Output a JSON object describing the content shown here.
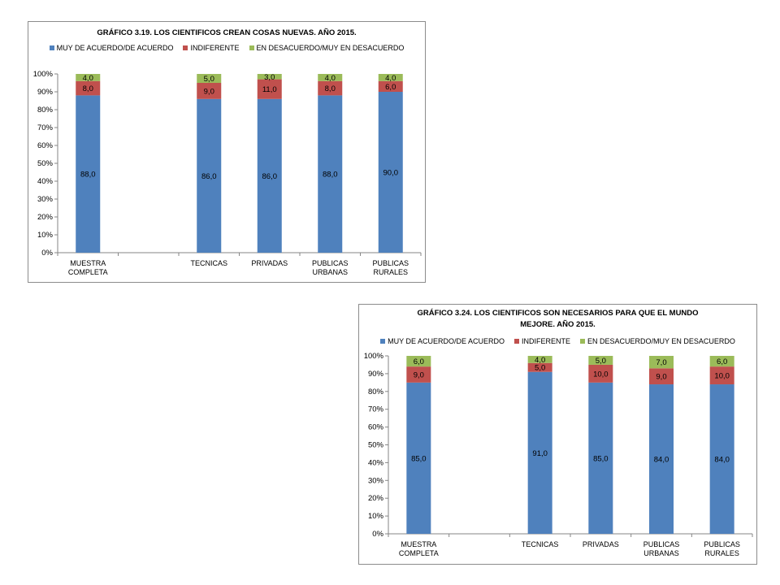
{
  "chart_data": [
    {
      "type": "bar",
      "stacked": true,
      "title": "GRÁFICO 3.19. LOS CIENTIFICOS CREAN COSAS NUEVAS. AÑO 2015.",
      "categories": [
        [
          "MUESTRA",
          "COMPLETA"
        ],
        [
          ""
        ],
        [
          "TECNICAS"
        ],
        [
          "PRIVADAS"
        ],
        [
          "PUBLICAS",
          "URBANAS"
        ],
        [
          "PUBLICAS",
          "RURALES"
        ]
      ],
      "series": [
        {
          "name": "MUY DE ACUERDO/DE ACUERDO",
          "color": "#4F81BD",
          "values": [
            88,
            null,
            86,
            86,
            88,
            90
          ],
          "labels": [
            "88,0",
            "",
            "86,0",
            "86,0",
            "88,0",
            "90,0"
          ]
        },
        {
          "name": "INDIFERENTE",
          "color": "#C0504D",
          "values": [
            8,
            null,
            9,
            11,
            8,
            6
          ],
          "labels": [
            "8,0",
            "",
            "9,0",
            "11,0",
            "8,0",
            "6,0"
          ]
        },
        {
          "name": "EN DESACUERDO/MUY EN DESACUERDO",
          "color": "#9BBB59",
          "values": [
            4,
            null,
            5,
            3,
            4,
            4
          ],
          "labels": [
            "4,0",
            "",
            "5,0",
            "3,0",
            "4,0",
            "4,0"
          ]
        }
      ],
      "ylim": [
        0,
        100
      ],
      "yticks": [
        "0%",
        "10%",
        "20%",
        "30%",
        "40%",
        "50%",
        "60%",
        "70%",
        "80%",
        "90%",
        "100%"
      ],
      "legend_position": "top",
      "grid": false
    },
    {
      "type": "bar",
      "stacked": true,
      "title": "GRÁFICO 3.24. LOS CIENTIFICOS SON NECESARIOS PARA QUE EL MUNDO MEJORE. AÑO 2015.",
      "categories": [
        [
          "MUESTRA",
          "COMPLETA"
        ],
        [
          ""
        ],
        [
          "TECNICAS"
        ],
        [
          "PRIVADAS"
        ],
        [
          "PUBLICAS",
          "URBANAS"
        ],
        [
          "PUBLICAS",
          "RURALES"
        ]
      ],
      "series": [
        {
          "name": "MUY DE ACUERDO/DE ACUERDO",
          "color": "#4F81BD",
          "values": [
            85,
            null,
            91,
            85,
            84,
            84
          ],
          "labels": [
            "85,0",
            "",
            "91,0",
            "85,0",
            "84,0",
            "84,0"
          ]
        },
        {
          "name": "INDIFERENTE",
          "color": "#C0504D",
          "values": [
            9,
            null,
            5,
            10,
            9,
            10
          ],
          "labels": [
            "9,0",
            "",
            "5,0",
            "10,0",
            "9,0",
            "10,0"
          ]
        },
        {
          "name": "EN DESACUERDO/MUY EN DESACUERDO",
          "color": "#9BBB59",
          "values": [
            6,
            null,
            4,
            5,
            7,
            6
          ],
          "labels": [
            "6,0",
            "",
            "4,0",
            "5,0",
            "7,0",
            "6,0"
          ]
        }
      ],
      "ylim": [
        0,
        100
      ],
      "yticks": [
        "0%",
        "10%",
        "20%",
        "30%",
        "40%",
        "50%",
        "60%",
        "70%",
        "80%",
        "90%",
        "100%"
      ],
      "legend_position": "top",
      "grid": false
    }
  ]
}
